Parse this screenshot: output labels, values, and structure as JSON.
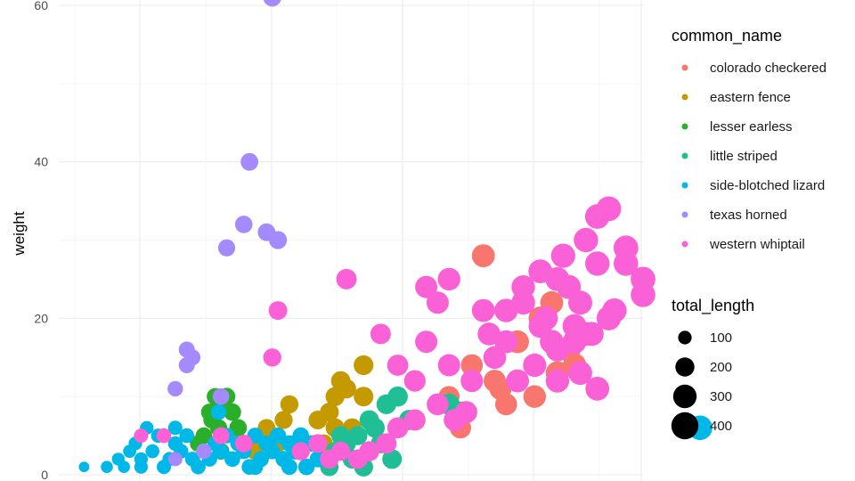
{
  "chart_data": {
    "type": "scatter",
    "title": "",
    "xlabel": "",
    "ylabel": "weight",
    "ylim": [
      0,
      60
    ],
    "y_ticks": [
      0,
      20,
      40,
      60
    ],
    "grid": true,
    "legend_placement": "right",
    "color_legend": {
      "title": "common_name",
      "entries": [
        {
          "label": "colorado checkered",
          "color": "#F8766D"
        },
        {
          "label": "eastern fence",
          "color": "#C49A00"
        },
        {
          "label": "lesser earless",
          "color": "#2BAF2B"
        },
        {
          "label": "little striped",
          "color": "#1FBE95"
        },
        {
          "label": "side-blotched lizard",
          "color": "#00B8E7"
        },
        {
          "label": "texas horned",
          "color": "#A58AFF"
        },
        {
          "label": "western whiptail",
          "color": "#FB61D7"
        }
      ]
    },
    "size_legend": {
      "title": "total_length",
      "values": [
        100,
        200,
        300,
        400
      ]
    },
    "series": [
      {
        "name": "colorado checkered",
        "points": [
          [
            330,
            28,
            290
          ],
          [
            380,
            20,
            300
          ],
          [
            390,
            22,
            290
          ],
          [
            420,
            18,
            310
          ],
          [
            410,
            14,
            300
          ],
          [
            350,
            9,
            260
          ],
          [
            340,
            12,
            270
          ],
          [
            300,
            10,
            240
          ],
          [
            320,
            14,
            260
          ],
          [
            405,
            16,
            300
          ],
          [
            310,
            6,
            250
          ],
          [
            345,
            11,
            270
          ],
          [
            360,
            17,
            285
          ],
          [
            395,
            13,
            300
          ],
          [
            375,
            10,
            280
          ]
        ]
      },
      {
        "name": "eastern fence",
        "points": [
          [
            200,
            10,
            200
          ],
          [
            205,
            12,
            205
          ],
          [
            210,
            11,
            205
          ],
          [
            225,
            14,
            215
          ],
          [
            225,
            10,
            210
          ],
          [
            195,
            8,
            195
          ],
          [
            200,
            6,
            195
          ],
          [
            185,
            7,
            190
          ],
          [
            160,
            9,
            180
          ],
          [
            140,
            6,
            170
          ],
          [
            155,
            7,
            175
          ],
          [
            150,
            4,
            170
          ],
          [
            215,
            6,
            200
          ],
          [
            130,
            3,
            165
          ],
          [
            190,
            4,
            185
          ]
        ]
      },
      {
        "name": "lesser earless",
        "points": [
          [
            90,
            8,
            160
          ],
          [
            95,
            10,
            160
          ],
          [
            100,
            9,
            160
          ],
          [
            105,
            10,
            165
          ],
          [
            92,
            7,
            155
          ],
          [
            98,
            6,
            160
          ],
          [
            110,
            8,
            165
          ],
          [
            85,
            5,
            150
          ],
          [
            100,
            3,
            155
          ],
          [
            115,
            6,
            170
          ],
          [
            80,
            4,
            150
          ],
          [
            120,
            4,
            170
          ]
        ]
      },
      {
        "name": "little striped",
        "points": [
          [
            200,
            3,
            190
          ],
          [
            210,
            4,
            195
          ],
          [
            215,
            2,
            195
          ],
          [
            220,
            5,
            200
          ],
          [
            230,
            3,
            205
          ],
          [
            235,
            6,
            210
          ],
          [
            240,
            4,
            210
          ],
          [
            245,
            9,
            215
          ],
          [
            265,
            7,
            225
          ],
          [
            250,
            2,
            210
          ],
          [
            195,
            1,
            185
          ],
          [
            225,
            1,
            200
          ],
          [
            255,
            10,
            220
          ],
          [
            300,
            9,
            245
          ],
          [
            310,
            8,
            250
          ],
          [
            230,
            7,
            205
          ],
          [
            205,
            5,
            195
          ]
        ]
      },
      {
        "name": "side-blotched lizard",
        "points": [
          [
            -20,
            1,
            60
          ],
          [
            0,
            1,
            80
          ],
          [
            10,
            2,
            90
          ],
          [
            20,
            3,
            95
          ],
          [
            25,
            4,
            100
          ],
          [
            30,
            2,
            100
          ],
          [
            40,
            3,
            105
          ],
          [
            45,
            5,
            110
          ],
          [
            50,
            1,
            110
          ],
          [
            55,
            2,
            110
          ],
          [
            60,
            4,
            115
          ],
          [
            65,
            3,
            115
          ],
          [
            70,
            5,
            120
          ],
          [
            75,
            2,
            120
          ],
          [
            80,
            1,
            120
          ],
          [
            85,
            3,
            125
          ],
          [
            90,
            2,
            125
          ],
          [
            95,
            4,
            130
          ],
          [
            100,
            3,
            130
          ],
          [
            105,
            5,
            130
          ],
          [
            110,
            2,
            135
          ],
          [
            115,
            4,
            135
          ],
          [
            120,
            3,
            135
          ],
          [
            125,
            1,
            135
          ],
          [
            130,
            5,
            140
          ],
          [
            135,
            2,
            140
          ],
          [
            140,
            4,
            140
          ],
          [
            145,
            3,
            140
          ],
          [
            150,
            5,
            145
          ],
          [
            155,
            2,
            145
          ],
          [
            160,
            4,
            145
          ],
          [
            165,
            3,
            150
          ],
          [
            170,
            5,
            150
          ],
          [
            175,
            1,
            150
          ],
          [
            180,
            4,
            150
          ],
          [
            185,
            2,
            150
          ],
          [
            35,
            6,
            100
          ],
          [
            60,
            6,
            110
          ],
          [
            98,
            8,
            130
          ],
          [
            30,
            1,
            100
          ],
          [
            50,
            5,
            110
          ],
          [
            15,
            1,
            80
          ],
          [
            130,
            1,
            140
          ],
          [
            160,
            1,
            140
          ],
          [
            520,
            6,
            330
          ]
        ]
      },
      {
        "name": "texas horned",
        "points": [
          [
            145,
            61,
            180
          ],
          [
            125,
            40,
            170
          ],
          [
            120,
            32,
            165
          ],
          [
            140,
            31,
            170
          ],
          [
            150,
            30,
            175
          ],
          [
            105,
            29,
            160
          ],
          [
            70,
            16,
            140
          ],
          [
            75,
            15,
            140
          ],
          [
            70,
            14,
            140
          ],
          [
            60,
            11,
            130
          ],
          [
            100,
            10,
            150
          ],
          [
            60,
            2,
            110
          ],
          [
            85,
            3,
            130
          ]
        ]
      },
      {
        "name": "western whiptail",
        "points": [
          [
            210,
            25,
            230
          ],
          [
            280,
            24,
            270
          ],
          [
            300,
            25,
            280
          ],
          [
            290,
            22,
            270
          ],
          [
            330,
            21,
            290
          ],
          [
            350,
            21,
            300
          ],
          [
            365,
            22,
            305
          ],
          [
            380,
            26,
            310
          ],
          [
            395,
            25,
            315
          ],
          [
            400,
            28,
            320
          ],
          [
            420,
            30,
            325
          ],
          [
            430,
            33,
            330
          ],
          [
            440,
            34,
            335
          ],
          [
            455,
            29,
            335
          ],
          [
            455,
            27,
            330
          ],
          [
            470,
            25,
            335
          ],
          [
            470,
            23,
            330
          ],
          [
            440,
            20,
            320
          ],
          [
            425,
            18,
            315
          ],
          [
            410,
            17,
            310
          ],
          [
            395,
            16,
            305
          ],
          [
            380,
            19,
            300
          ],
          [
            375,
            14,
            295
          ],
          [
            360,
            12,
            290
          ],
          [
            340,
            15,
            285
          ],
          [
            320,
            12,
            275
          ],
          [
            315,
            8,
            270
          ],
          [
            305,
            7,
            265
          ],
          [
            290,
            9,
            260
          ],
          [
            270,
            7,
            250
          ],
          [
            255,
            6,
            240
          ],
          [
            245,
            4,
            230
          ],
          [
            230,
            3,
            220
          ],
          [
            220,
            2,
            210
          ],
          [
            205,
            3,
            200
          ],
          [
            195,
            2,
            195
          ],
          [
            185,
            4,
            190
          ],
          [
            170,
            3,
            180
          ],
          [
            240,
            18,
            230
          ],
          [
            145,
            15,
            180
          ],
          [
            150,
            21,
            190
          ],
          [
            120,
            4,
            170
          ],
          [
            100,
            5,
            155
          ],
          [
            30,
            5,
            110
          ],
          [
            50,
            5,
            120
          ],
          [
            335,
            18,
            285
          ],
          [
            365,
            24,
            300
          ],
          [
            385,
            20,
            305
          ],
          [
            405,
            24,
            315
          ],
          [
            415,
            22,
            315
          ],
          [
            430,
            27,
            325
          ],
          [
            445,
            21,
            325
          ],
          [
            350,
            17,
            290
          ],
          [
            430,
            11,
            310
          ],
          [
            280,
            17,
            270
          ],
          [
            300,
            14,
            270
          ],
          [
            255,
            14,
            245
          ],
          [
            270,
            12,
            255
          ],
          [
            415,
            13,
            310
          ],
          [
            390,
            17,
            305
          ],
          [
            410,
            19,
            315
          ],
          [
            395,
            12,
            300
          ]
        ]
      }
    ]
  }
}
